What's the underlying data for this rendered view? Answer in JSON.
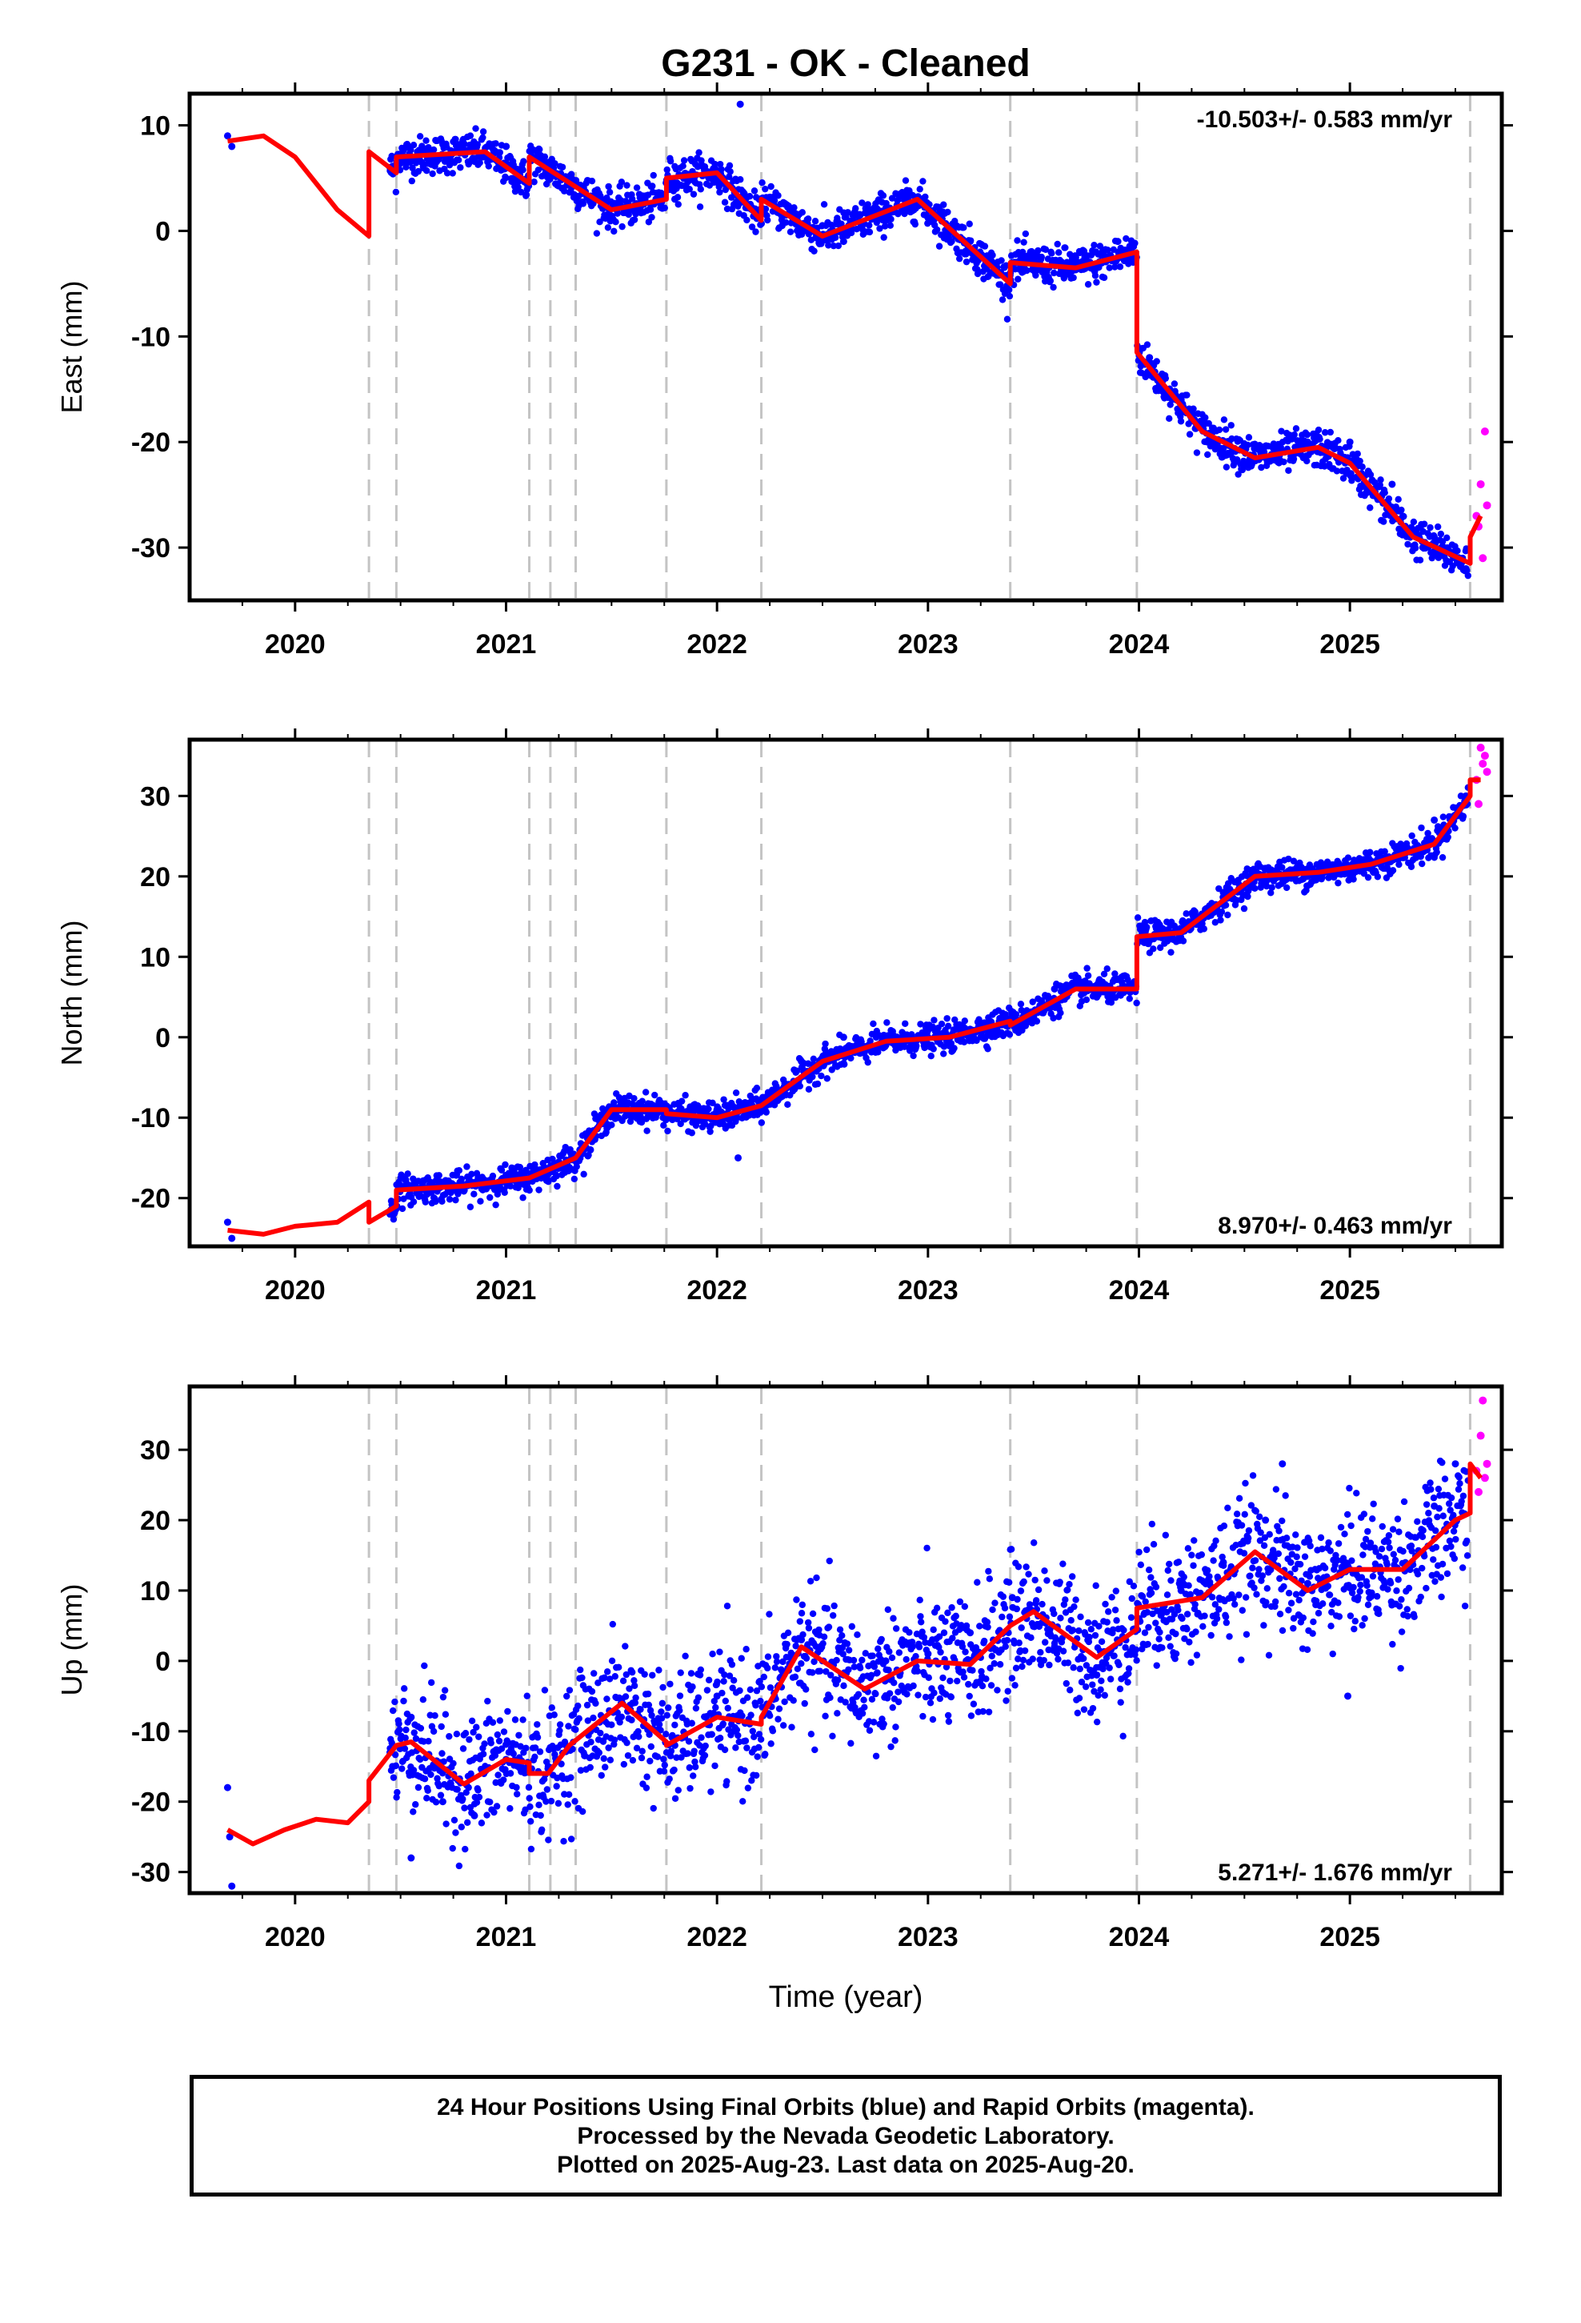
{
  "chart_data": [
    {
      "type": "scatter",
      "title": "G231  - OK - Cleaned",
      "xlabel": "",
      "ylabel": "East (mm)",
      "rate_label": "-10.503+/- 0.583 mm/yr",
      "rate_position": "top-right",
      "xlim": [
        2019.5,
        2025.72
      ],
      "ylim": [
        -35,
        13
      ],
      "yticks": [
        10,
        0,
        -10,
        -20,
        -30
      ],
      "xticks": [
        2020,
        2021,
        2022,
        2023,
        2024,
        2025
      ],
      "step_epochs": [
        2020.35,
        2020.48,
        2021.11,
        2021.21,
        2021.33,
        2021.76,
        2022.21,
        2023.39,
        2023.99,
        2025.57
      ],
      "series": [
        {
          "role": "Final Orbits",
          "color": "#0000ff",
          "x": [
            2019.68,
            2019.7,
            2020.45,
            2020.6,
            2020.8,
            2021.0,
            2021.2,
            2021.4,
            2021.6,
            2021.8,
            2022.0,
            2022.2,
            2022.4,
            2022.6,
            2022.8,
            2023.0,
            2023.2,
            2023.39,
            2023.5,
            2023.7,
            2023.9,
            2024.05,
            2024.2,
            2024.4,
            2024.6,
            2024.8,
            2025.0,
            2025.2,
            2025.4,
            2025.55,
            2022.11
          ],
          "y": [
            9,
            8,
            6,
            6.5,
            7.5,
            8,
            5,
            3,
            2,
            3,
            5,
            2,
            0,
            -1,
            1.5,
            2.5,
            -1,
            -4,
            -3.5,
            -2.5,
            -1,
            -12,
            -16,
            -21,
            -21.5,
            -20,
            -20,
            -24,
            -29,
            -32,
            12
          ]
        },
        {
          "role": "Rapid Orbits",
          "color": "#ff00ff",
          "x": [
            2025.6,
            2025.61,
            2025.62,
            2025.63,
            2025.64,
            2025.65
          ],
          "y": [
            -27,
            -28,
            -24,
            -31,
            -19,
            -26
          ]
        },
        {
          "role": "Model",
          "color": "#ff0000",
          "x": [
            2019.68,
            2019.85,
            2020.0,
            2020.2,
            2020.35,
            2020.35,
            2020.48,
            2020.48,
            2020.9,
            2021.11,
            2021.11,
            2021.5,
            2021.76,
            2021.76,
            2022.0,
            2022.21,
            2022.21,
            2022.5,
            2022.95,
            2023.39,
            2023.39,
            2023.7,
            2023.99,
            2023.99,
            2024.3,
            2024.55,
            2024.85,
            2025.0,
            2025.3,
            2025.57,
            2025.57,
            2025.62
          ],
          "y": [
            8.5,
            9,
            7,
            2,
            -0.5,
            7.5,
            5.5,
            7,
            7.5,
            4.5,
            7,
            2,
            3,
            5,
            5.5,
            1,
            3,
            -0.5,
            3,
            -5,
            -3,
            -3.5,
            -2,
            -11.5,
            -19,
            -21.5,
            -20.5,
            -22,
            -29,
            -31.5,
            -29,
            -27
          ]
        }
      ]
    },
    {
      "type": "scatter",
      "title": "",
      "xlabel": "",
      "ylabel": "North (mm)",
      "rate_label": "8.970+/- 0.463 mm/yr",
      "rate_position": "bottom-right",
      "xlim": [
        2019.5,
        2025.72
      ],
      "ylim": [
        -26,
        37
      ],
      "yticks": [
        30,
        20,
        10,
        0,
        -10,
        -20
      ],
      "xticks": [
        2020,
        2021,
        2022,
        2023,
        2024,
        2025
      ],
      "step_epochs": [
        2020.35,
        2020.48,
        2021.11,
        2021.21,
        2021.33,
        2021.76,
        2022.21,
        2023.39,
        2023.99,
        2025.57
      ],
      "series": [
        {
          "role": "Final Orbits",
          "color": "#0000ff",
          "x": [
            2019.68,
            2019.7,
            2020.45,
            2020.6,
            2020.8,
            2021.0,
            2021.2,
            2021.4,
            2021.6,
            2021.8,
            2022.0,
            2022.2,
            2022.4,
            2022.6,
            2022.8,
            2023.0,
            2023.2,
            2023.4,
            2023.6,
            2023.8,
            2023.95,
            2024.05,
            2024.2,
            2024.4,
            2024.6,
            2024.8,
            2025.0,
            2025.2,
            2025.4,
            2025.55,
            2022.1
          ],
          "y": [
            -23,
            -25,
            -22,
            -18,
            -19,
            -18,
            -17,
            -14,
            -9,
            -10,
            -9,
            -8,
            -3,
            0,
            -1,
            0,
            1,
            3,
            6,
            5,
            6,
            12,
            13,
            18,
            21,
            20,
            21,
            22,
            27,
            30,
            -15
          ]
        },
        {
          "role": "Rapid Orbits",
          "color": "#ff00ff",
          "x": [
            2025.6,
            2025.61,
            2025.62,
            2025.63,
            2025.64,
            2025.65
          ],
          "y": [
            32,
            29,
            36,
            34,
            35,
            33
          ]
        },
        {
          "role": "Model",
          "color": "#ff0000",
          "x": [
            2019.68,
            2019.85,
            2020.0,
            2020.2,
            2020.35,
            2020.35,
            2020.48,
            2020.48,
            2020.8,
            2021.11,
            2021.11,
            2021.33,
            2021.5,
            2021.76,
            2021.76,
            2022.0,
            2022.21,
            2022.21,
            2022.5,
            2022.8,
            2023.1,
            2023.39,
            2023.39,
            2023.7,
            2023.99,
            2023.99,
            2024.2,
            2024.55,
            2024.85,
            2025.1,
            2025.4,
            2025.57,
            2025.57,
            2025.62
          ],
          "y": [
            -24,
            -24.5,
            -23.5,
            -23,
            -20.5,
            -23,
            -21,
            -19,
            -18.5,
            -17.5,
            -17.5,
            -15,
            -9,
            -9,
            -9.5,
            -10,
            -8.5,
            -8.5,
            -3,
            -0.5,
            0,
            2,
            1.5,
            6,
            6,
            12.5,
            13,
            20,
            20.5,
            21.5,
            24,
            30,
            32,
            32
          ]
        }
      ]
    },
    {
      "type": "scatter",
      "title": "",
      "xlabel": "Time (year)",
      "ylabel": "Up (mm)",
      "rate_label": "5.271+/- 1.676 mm/yr",
      "rate_position": "bottom-right",
      "xlim": [
        2019.5,
        2025.72
      ],
      "ylim": [
        -33,
        39
      ],
      "yticks": [
        30,
        20,
        10,
        0,
        -10,
        -20,
        -30
      ],
      "xticks": [
        2020,
        2021,
        2022,
        2023,
        2024,
        2025
      ],
      "step_epochs": [
        2020.35,
        2020.48,
        2021.11,
        2021.21,
        2021.33,
        2021.76,
        2022.21,
        2023.39,
        2023.99,
        2025.57
      ],
      "series": [
        {
          "role": "Final Orbits",
          "color": "#0000ff",
          "x": [
            2019.68,
            2019.69,
            2019.7,
            2020.45,
            2020.55,
            2020.7,
            2020.85,
            2021.0,
            2021.2,
            2021.4,
            2021.6,
            2021.8,
            2022.0,
            2022.2,
            2022.4,
            2022.6,
            2022.8,
            2023.0,
            2023.2,
            2023.4,
            2023.6,
            2023.8,
            2024.0,
            2024.2,
            2024.4,
            2024.6,
            2024.8,
            2025.0,
            2025.2,
            2025.4,
            2025.5,
            2020.55,
            2024.99,
            2024.68
          ],
          "y": [
            -18,
            -25,
            -32,
            -13,
            -8,
            -20,
            -22,
            -14,
            -15,
            -10,
            -6,
            -12,
            -5,
            -3,
            3,
            -2,
            0,
            1,
            4,
            9,
            2,
            -2,
            6,
            10,
            14,
            20,
            11,
            13,
            8,
            22,
            28,
            -28,
            -5,
            28
          ]
        },
        {
          "role": "Rapid Orbits",
          "color": "#ff00ff",
          "x": [
            2025.6,
            2025.61,
            2025.62,
            2025.63,
            2025.64,
            2025.65
          ],
          "y": [
            27,
            24,
            32,
            37,
            26,
            28
          ]
        },
        {
          "role": "Model",
          "color": "#ff0000",
          "x": [
            2019.68,
            2019.8,
            2019.95,
            2020.1,
            2020.25,
            2020.35,
            2020.35,
            2020.48,
            2020.55,
            2020.8,
            2021.0,
            2021.11,
            2021.11,
            2021.2,
            2021.3,
            2021.55,
            2021.76,
            2021.76,
            2022.0,
            2022.21,
            2022.21,
            2022.4,
            2022.7,
            2022.95,
            2023.2,
            2023.39,
            2023.5,
            2023.8,
            2023.99,
            2023.99,
            2024.3,
            2024.55,
            2024.8,
            2025.0,
            2025.25,
            2025.5,
            2025.57,
            2025.57,
            2025.62
          ],
          "y": [
            -24,
            -26,
            -24,
            -22.5,
            -23,
            -20,
            -17,
            -12,
            -11.5,
            -17.5,
            -14,
            -14.5,
            -16,
            -16,
            -12,
            -6,
            -11.5,
            -12,
            -8,
            -9,
            -8,
            2,
            -4,
            0,
            -0.5,
            5,
            7,
            0.5,
            4.5,
            7.5,
            9,
            15.5,
            10,
            13,
            13,
            20,
            21,
            28,
            26
          ]
        }
      ]
    }
  ],
  "footer": {
    "line1": "24 Hour Positions Using Final Orbits (blue) and Rapid Orbits (magenta).",
    "line2": "Processed by the Nevada Geodetic Laboratory.",
    "line3": "Plotted on 2025-Aug-23. Last data on 2025-Aug-20."
  }
}
